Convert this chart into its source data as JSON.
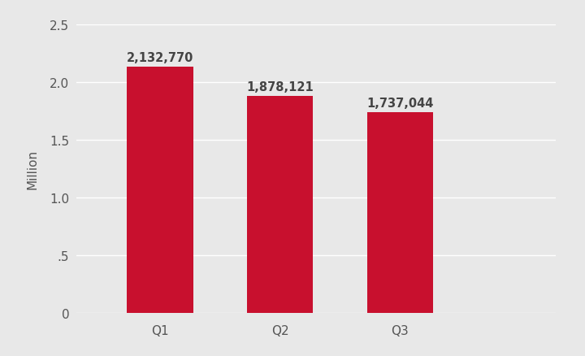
{
  "categories": [
    "Q1",
    "Q2",
    "Q3"
  ],
  "values": [
    2132770,
    1878121,
    1737044
  ],
  "labels": [
    "2,132,770",
    "1,878,121",
    "1,737,044"
  ],
  "bar_color": "#c8102e",
  "background_color": "#e8e8e8",
  "ylabel": "Million",
  "ylim": [
    0,
    2500000
  ],
  "yticks": [
    0,
    500000,
    1000000,
    1500000,
    2000000,
    2500000
  ],
  "ytick_labels": [
    "0",
    ".5",
    "1.0",
    "1.5",
    "2.0",
    "2.5"
  ],
  "bar_width": 0.55,
  "label_fontsize": 10.5,
  "tick_fontsize": 11,
  "ylabel_fontsize": 11,
  "grid_color": "#ffffff",
  "tick_color": "#555555",
  "label_color": "#444444"
}
